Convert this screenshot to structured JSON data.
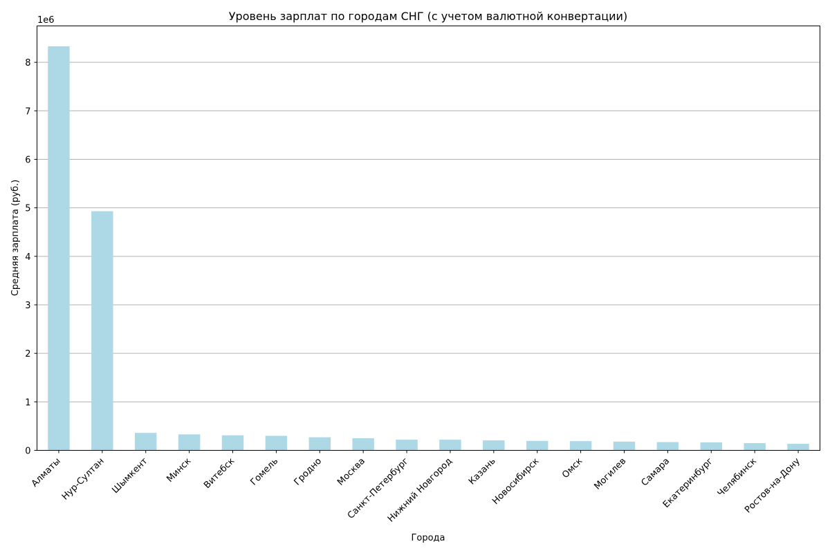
{
  "chart_data": {
    "type": "bar",
    "title": "Уровень зарплат по городам СНГ (с учетом валютной конвертации)",
    "xlabel": "Города",
    "ylabel": "Средняя зарплата (руб.)",
    "y_multiplier_label": "1e6",
    "ylim": [
      0,
      8750000
    ],
    "y_ticks": [
      0,
      1000000,
      2000000,
      3000000,
      4000000,
      5000000,
      6000000,
      7000000,
      8000000
    ],
    "y_tick_labels": [
      "0",
      "1",
      "2",
      "3",
      "4",
      "5",
      "6",
      "7",
      "8"
    ],
    "grid": "horizontal",
    "bar_color": "#add8e6",
    "categories": [
      "Алматы",
      "Нур-Султан",
      "Шымкент",
      "Минск",
      "Витебск",
      "Гомель",
      "Гродно",
      "Москва",
      "Санкт-Петербург",
      "Нижний Новгород",
      "Казань",
      "Новосибирск",
      "Омск",
      "Могилев",
      "Самара",
      "Екатеринбург",
      "Челябинск",
      "Ростов-на-Дону"
    ],
    "values": [
      8330000,
      4930000,
      360000,
      330000,
      310000,
      300000,
      270000,
      250000,
      220000,
      220000,
      205000,
      195000,
      190000,
      180000,
      170000,
      165000,
      150000,
      135000
    ]
  }
}
